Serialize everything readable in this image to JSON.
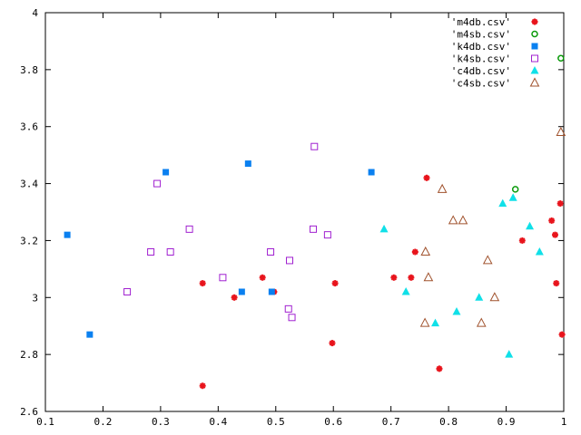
{
  "chart_data": {
    "type": "scatter",
    "title": "",
    "xlabel": "",
    "ylabel": "",
    "xlim": [
      0.1,
      1.0
    ],
    "ylim": [
      2.6,
      4.0
    ],
    "x_ticks": [
      "0.1",
      "0.2",
      "0.3",
      "0.4",
      "0.5",
      "0.6",
      "0.7",
      "0.8",
      "0.9",
      "1"
    ],
    "y_ticks": [
      "2.6",
      "2.8",
      "3",
      "3.2",
      "3.4",
      "3.6",
      "3.8",
      "4"
    ],
    "grid": false,
    "legend_position": "top-right",
    "series": [
      {
        "name": "'m4db.csv'",
        "marker": "star",
        "color": "#e8141c",
        "points": [
          [
            0.373,
            3.05
          ],
          [
            0.373,
            2.69
          ],
          [
            0.428,
            3.0
          ],
          [
            0.477,
            3.07
          ],
          [
            0.497,
            3.02
          ],
          [
            0.598,
            2.84
          ],
          [
            0.603,
            3.05
          ],
          [
            0.705,
            3.07
          ],
          [
            0.735,
            3.07
          ],
          [
            0.742,
            3.16
          ],
          [
            0.762,
            3.42
          ],
          [
            0.784,
            2.75
          ],
          [
            0.928,
            3.2
          ],
          [
            0.979,
            3.27
          ],
          [
            0.985,
            3.22
          ],
          [
            0.987,
            3.05
          ],
          [
            0.994,
            3.33
          ],
          [
            0.997,
            2.87
          ]
        ]
      },
      {
        "name": "'m4sb.csv'",
        "marker": "circle-open",
        "color": "#0a9a0a",
        "points": [
          [
            0.916,
            3.38
          ],
          [
            0.995,
            3.84
          ]
        ]
      },
      {
        "name": "'k4db.csv'",
        "marker": "square",
        "color": "#0a80f0",
        "points": [
          [
            0.138,
            3.22
          ],
          [
            0.177,
            2.87
          ],
          [
            0.309,
            3.44
          ],
          [
            0.441,
            3.02
          ],
          [
            0.452,
            3.47
          ],
          [
            0.493,
            3.02
          ],
          [
            0.666,
            3.44
          ]
        ]
      },
      {
        "name": "'k4sb.csv'",
        "marker": "square-open",
        "color": "#a020d0",
        "points": [
          [
            0.242,
            3.02
          ],
          [
            0.283,
            3.16
          ],
          [
            0.294,
            3.4
          ],
          [
            0.317,
            3.16
          ],
          [
            0.35,
            3.24
          ],
          [
            0.408,
            3.07
          ],
          [
            0.491,
            3.16
          ],
          [
            0.522,
            2.96
          ],
          [
            0.524,
            3.13
          ],
          [
            0.528,
            2.93
          ],
          [
            0.565,
            3.24
          ],
          [
            0.567,
            3.53
          ],
          [
            0.59,
            3.22
          ]
        ]
      },
      {
        "name": "'c4db.csv'",
        "marker": "triangle",
        "color": "#10e0e8",
        "points": [
          [
            0.688,
            3.24
          ],
          [
            0.726,
            3.02
          ],
          [
            0.777,
            2.91
          ],
          [
            0.814,
            2.95
          ],
          [
            0.853,
            3.0
          ],
          [
            0.894,
            3.33
          ],
          [
            0.905,
            2.8
          ],
          [
            0.912,
            3.35
          ],
          [
            0.941,
            3.25
          ],
          [
            0.958,
            3.16
          ]
        ]
      },
      {
        "name": "'c4sb.csv'",
        "marker": "triangle-open",
        "color": "#a0522d",
        "points": [
          [
            0.759,
            2.91
          ],
          [
            0.76,
            3.16
          ],
          [
            0.765,
            3.07
          ],
          [
            0.789,
            3.38
          ],
          [
            0.808,
            3.27
          ],
          [
            0.825,
            3.27
          ],
          [
            0.857,
            2.91
          ],
          [
            0.868,
            3.13
          ],
          [
            0.88,
            3.0
          ],
          [
            0.995,
            3.58
          ]
        ]
      }
    ]
  }
}
